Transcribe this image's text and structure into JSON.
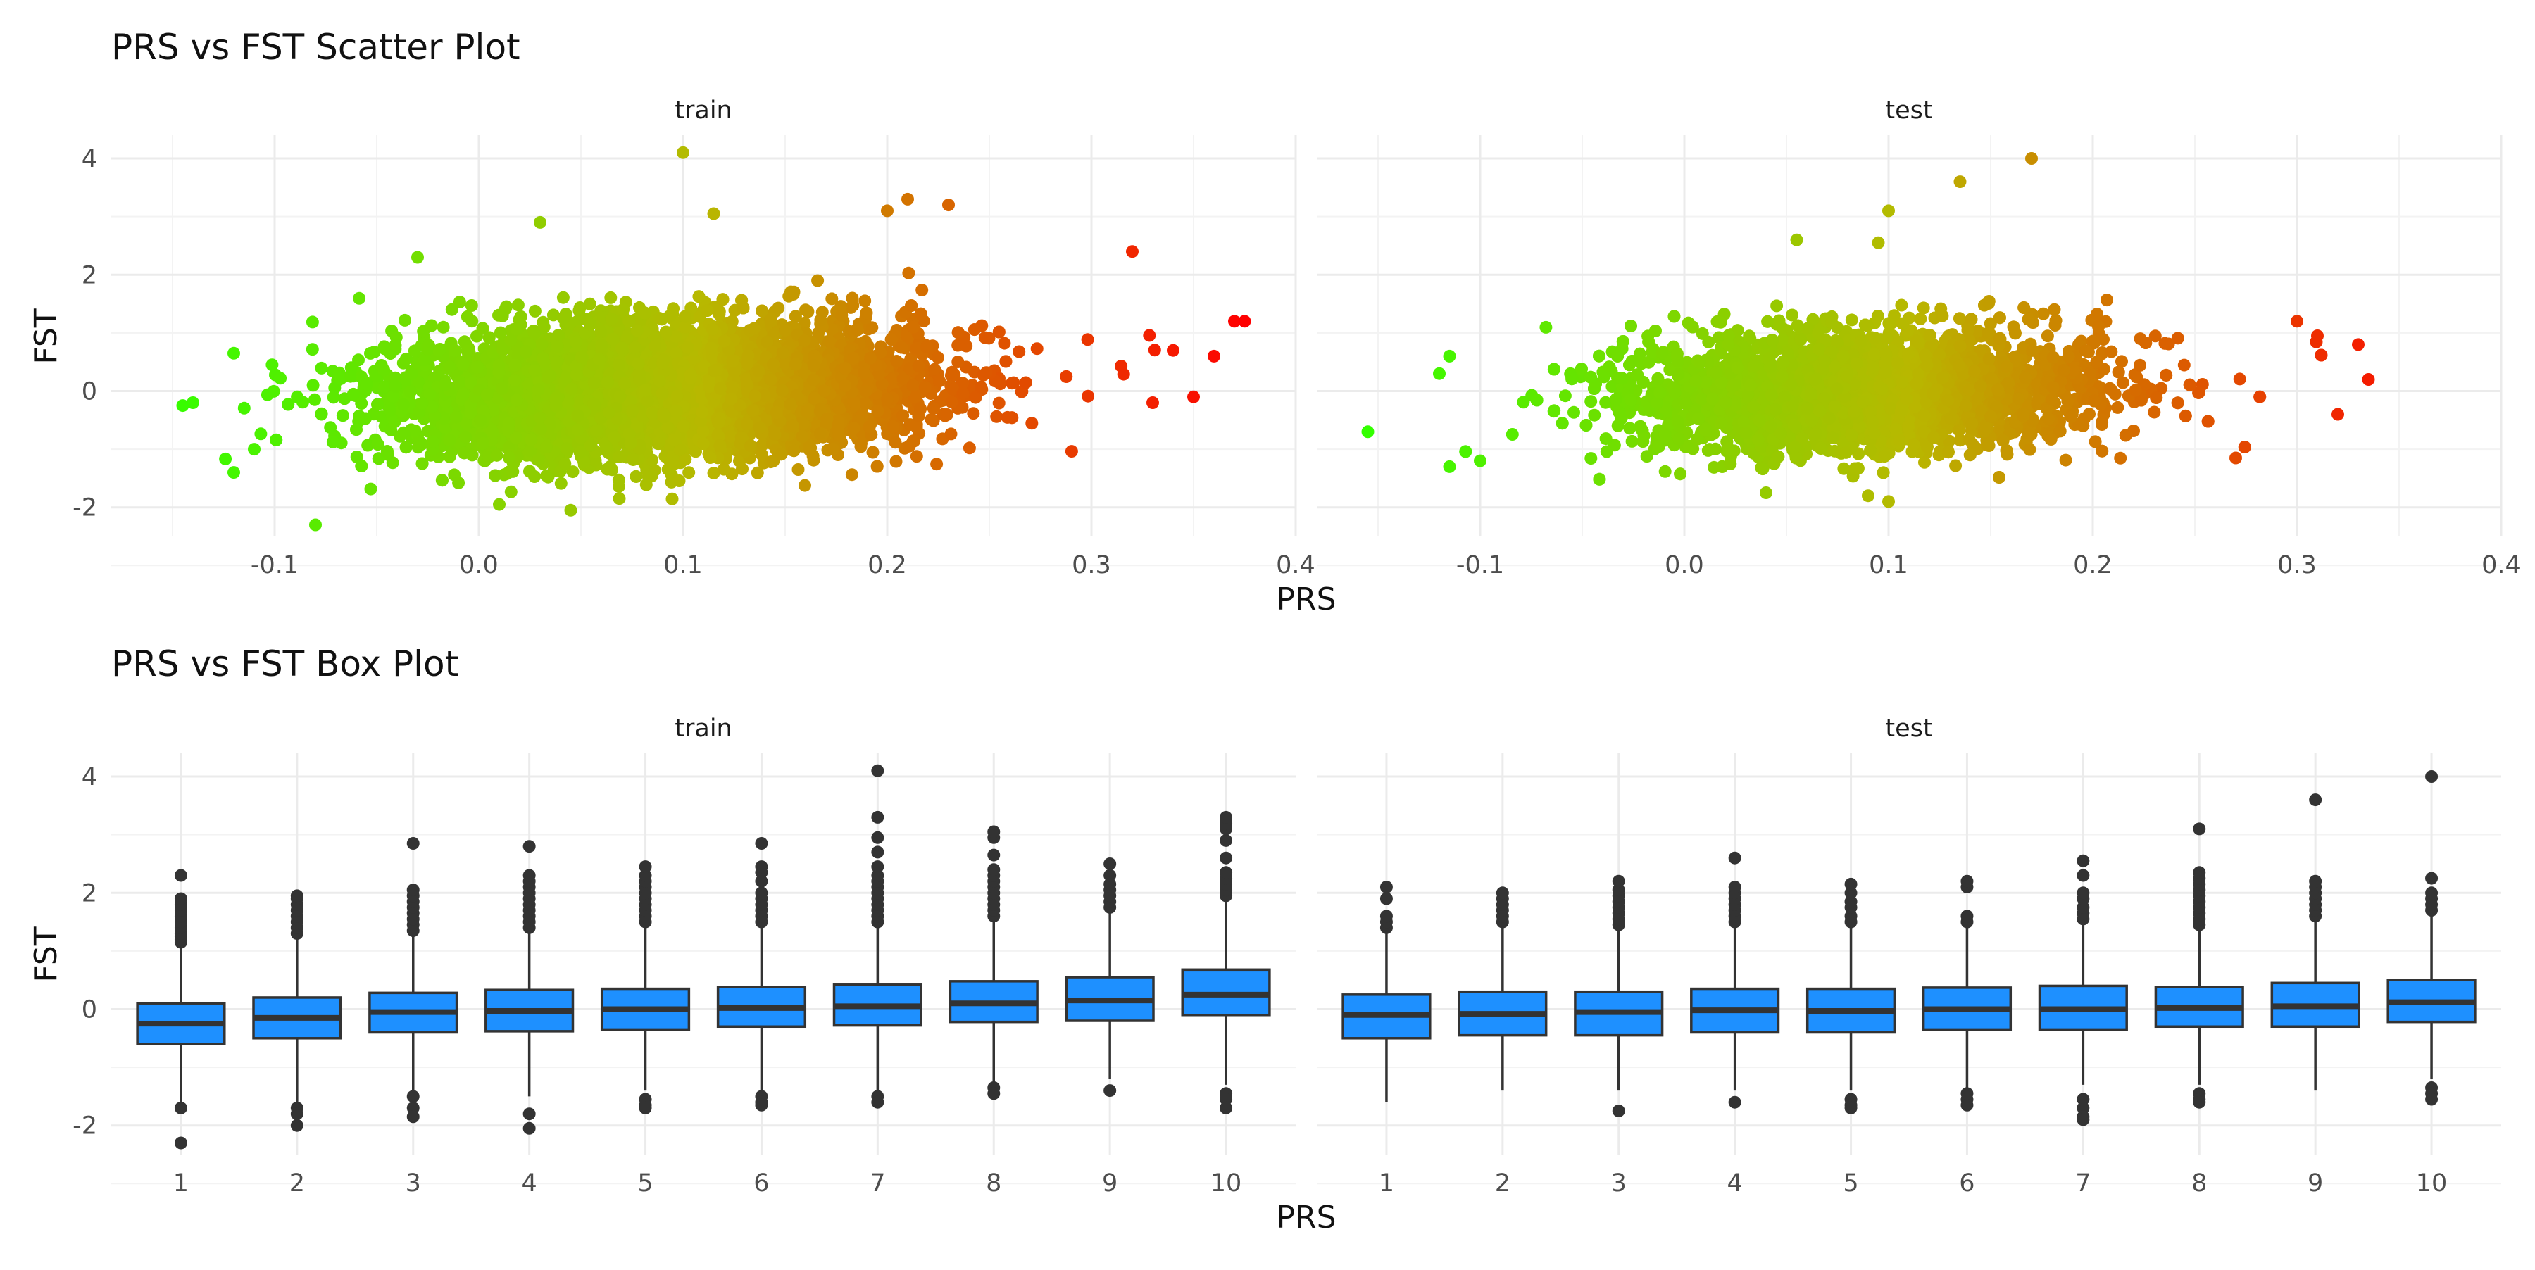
{
  "chart_data": [
    {
      "type": "scatter",
      "title": "PRS vs FST Scatter Plot",
      "xlabel": "PRS",
      "ylabel": "FST",
      "xlim": [
        -0.18,
        0.4
      ],
      "ylim": [
        -2.5,
        4.4
      ],
      "x_ticks": [
        "-0.1",
        "0.0",
        "0.1",
        "0.2",
        "0.3",
        "0.4"
      ],
      "y_ticks": [
        "-2",
        "0",
        "2",
        "4"
      ],
      "grid": true,
      "legend": "none",
      "color_scale": {
        "low": "#33ff00",
        "mid": "#b8b800",
        "high": "#ff0000",
        "by": "PRS"
      },
      "panels": [
        {
          "name": "train",
          "cloud": {
            "x_mean": 0.09,
            "x_sd": 0.063,
            "x_min": -0.15,
            "x_max": 0.375,
            "y_sd": 0.55,
            "slope": 3.6,
            "count": 6000
          },
          "points": [
            {
              "x": 0.1,
              "y": 4.1
            },
            {
              "x": 0.21,
              "y": 3.3
            },
            {
              "x": 0.23,
              "y": 3.2
            },
            {
              "x": 0.2,
              "y": 3.1
            },
            {
              "x": 0.115,
              "y": 3.05
            },
            {
              "x": 0.03,
              "y": 2.9
            },
            {
              "x": -0.03,
              "y": 2.3
            },
            {
              "x": 0.32,
              "y": 2.4
            },
            {
              "x": 0.37,
              "y": 1.2
            },
            {
              "x": 0.375,
              "y": 1.2
            },
            {
              "x": 0.36,
              "y": 0.6
            },
            {
              "x": 0.34,
              "y": 0.7
            },
            {
              "x": 0.35,
              "y": -0.1
            },
            {
              "x": 0.33,
              "y": -0.2
            },
            {
              "x": -0.14,
              "y": -0.2
            },
            {
              "x": -0.145,
              "y": -0.25
            },
            {
              "x": -0.12,
              "y": 0.65
            },
            {
              "x": -0.08,
              "y": -2.3
            },
            {
              "x": 0.045,
              "y": -2.05
            },
            {
              "x": 0.01,
              "y": -1.95
            },
            {
              "x": -0.12,
              "y": -1.4
            },
            {
              "x": -0.11,
              "y": -1.0
            }
          ]
        },
        {
          "name": "test",
          "cloud": {
            "x_mean": 0.09,
            "x_sd": 0.058,
            "x_min": -0.12,
            "x_max": 0.335,
            "y_sd": 0.5,
            "slope": 3.2,
            "count": 4000
          },
          "points": [
            {
              "x": 0.17,
              "y": 4.0
            },
            {
              "x": 0.135,
              "y": 3.6
            },
            {
              "x": 0.1,
              "y": 3.1
            },
            {
              "x": 0.095,
              "y": 2.55
            },
            {
              "x": 0.055,
              "y": 2.6
            },
            {
              "x": -0.155,
              "y": -0.7
            },
            {
              "x": -0.115,
              "y": 0.6
            },
            {
              "x": -0.12,
              "y": 0.3
            },
            {
              "x": -0.115,
              "y": -1.3
            },
            {
              "x": -0.1,
              "y": -1.2
            },
            {
              "x": 0.335,
              "y": 0.2
            },
            {
              "x": 0.33,
              "y": 0.8
            },
            {
              "x": 0.31,
              "y": 0.95
            },
            {
              "x": 0.3,
              "y": 1.2
            },
            {
              "x": 0.32,
              "y": -0.4
            },
            {
              "x": 0.27,
              "y": -1.15
            },
            {
              "x": 0.04,
              "y": -1.75
            },
            {
              "x": 0.1,
              "y": -1.9
            },
            {
              "x": 0.09,
              "y": -1.8
            }
          ]
        }
      ]
    },
    {
      "type": "box",
      "title": "PRS vs FST Box Plot",
      "xlabel": "PRS",
      "ylabel": "FST",
      "ylim": [
        -2.5,
        4.4
      ],
      "categories": [
        "1",
        "2",
        "3",
        "4",
        "5",
        "6",
        "7",
        "8",
        "9",
        "10"
      ],
      "y_ticks": [
        "-2",
        "0",
        "2",
        "4"
      ],
      "grid": true,
      "legend": "none",
      "box_color": "#1e90ff",
      "outline_color": "#333333",
      "panels": [
        {
          "name": "train",
          "boxes": [
            {
              "category": "1",
              "whisker_low": -1.6,
              "q1": -0.6,
              "median": -0.25,
              "q3": 0.1,
              "whisker_high": 1.1,
              "outliers_high": [
                1.15,
                1.2,
                1.25,
                1.3,
                1.4,
                1.5,
                1.6,
                1.7,
                1.8,
                1.9,
                2.3
              ],
              "outliers_low": [
                -1.7,
                -2.3
              ]
            },
            {
              "category": "2",
              "whisker_low": -1.6,
              "q1": -0.5,
              "median": -0.15,
              "q3": 0.2,
              "whisker_high": 1.25,
              "outliers_high": [
                1.3,
                1.4,
                1.5,
                1.6,
                1.7,
                1.8,
                1.9,
                1.95
              ],
              "outliers_low": [
                -1.7,
                -1.8,
                -2.0
              ]
            },
            {
              "category": "3",
              "whisker_low": -1.45,
              "q1": -0.4,
              "median": -0.05,
              "q3": 0.28,
              "whisker_high": 1.3,
              "outliers_high": [
                1.35,
                1.45,
                1.55,
                1.65,
                1.75,
                1.85,
                1.95,
                2.05,
                2.85
              ],
              "outliers_low": [
                -1.5,
                -1.7,
                -1.85
              ]
            },
            {
              "category": "4",
              "whisker_low": -1.5,
              "q1": -0.38,
              "median": -0.03,
              "q3": 0.33,
              "whisker_high": 1.35,
              "outliers_high": [
                1.4,
                1.5,
                1.6,
                1.7,
                1.8,
                1.9,
                2.0,
                2.1,
                2.2,
                2.3,
                2.8
              ],
              "outliers_low": [
                -1.8,
                -2.05
              ]
            },
            {
              "category": "5",
              "whisker_low": -1.4,
              "q1": -0.35,
              "median": 0.0,
              "q3": 0.35,
              "whisker_high": 1.4,
              "outliers_high": [
                1.5,
                1.6,
                1.7,
                1.8,
                1.9,
                2.0,
                2.1,
                2.2,
                2.3,
                2.45
              ],
              "outliers_low": [
                -1.55,
                -1.65,
                -1.7
              ]
            },
            {
              "category": "6",
              "whisker_low": -1.4,
              "q1": -0.3,
              "median": 0.02,
              "q3": 0.38,
              "whisker_high": 1.45,
              "outliers_high": [
                1.5,
                1.6,
                1.7,
                1.8,
                1.9,
                2.0,
                2.2,
                2.35,
                2.45,
                2.85
              ],
              "outliers_low": [
                -1.5,
                -1.6,
                -1.65
              ]
            },
            {
              "category": "7",
              "whisker_low": -1.4,
              "q1": -0.28,
              "median": 0.05,
              "q3": 0.42,
              "whisker_high": 1.45,
              "outliers_high": [
                1.5,
                1.6,
                1.7,
                1.8,
                1.9,
                2.0,
                2.1,
                2.2,
                2.3,
                2.45,
                2.7,
                2.95,
                3.3,
                4.1
              ],
              "outliers_low": [
                -1.5,
                -1.6
              ]
            },
            {
              "category": "8",
              "whisker_low": -1.3,
              "q1": -0.22,
              "median": 0.1,
              "q3": 0.48,
              "whisker_high": 1.55,
              "outliers_high": [
                1.6,
                1.7,
                1.8,
                1.9,
                2.0,
                2.1,
                2.2,
                2.3,
                2.4,
                2.65,
                2.95,
                3.05
              ],
              "outliers_low": [
                -1.35,
                -1.45
              ]
            },
            {
              "category": "9",
              "whisker_low": -1.2,
              "q1": -0.2,
              "median": 0.15,
              "q3": 0.55,
              "whisker_high": 1.7,
              "outliers_high": [
                1.75,
                1.85,
                1.95,
                2.05,
                2.15,
                2.3,
                2.5
              ],
              "outliers_low": [
                -1.4
              ]
            },
            {
              "category": "10",
              "whisker_low": -1.3,
              "q1": -0.1,
              "median": 0.25,
              "q3": 0.68,
              "whisker_high": 1.9,
              "outliers_high": [
                1.95,
                2.05,
                2.15,
                2.25,
                2.35,
                2.6,
                2.9,
                3.1,
                3.2,
                3.3
              ],
              "outliers_low": [
                -1.45,
                -1.55,
                -1.7
              ]
            }
          ]
        },
        {
          "name": "test",
          "boxes": [
            {
              "category": "1",
              "whisker_low": -1.6,
              "q1": -0.5,
              "median": -0.1,
              "q3": 0.25,
              "whisker_high": 1.3,
              "outliers_high": [
                1.4,
                1.5,
                1.6,
                1.9,
                2.1
              ],
              "outliers_low": []
            },
            {
              "category": "2",
              "whisker_low": -1.4,
              "q1": -0.45,
              "median": -0.08,
              "q3": 0.3,
              "whisker_high": 1.4,
              "outliers_high": [
                1.5,
                1.6,
                1.7,
                1.8,
                1.9,
                2.0
              ],
              "outliers_low": []
            },
            {
              "category": "3",
              "whisker_low": -1.4,
              "q1": -0.45,
              "median": -0.05,
              "q3": 0.3,
              "whisker_high": 1.4,
              "outliers_high": [
                1.45,
                1.55,
                1.65,
                1.75,
                1.85,
                1.95,
                2.05,
                2.2
              ],
              "outliers_low": [
                -1.75
              ]
            },
            {
              "category": "4",
              "whisker_low": -1.4,
              "q1": -0.4,
              "median": -0.02,
              "q3": 0.35,
              "whisker_high": 1.45,
              "outliers_high": [
                1.5,
                1.6,
                1.7,
                1.8,
                1.9,
                2.0,
                2.1,
                2.6
              ],
              "outliers_low": [
                -1.6
              ]
            },
            {
              "category": "5",
              "whisker_low": -1.4,
              "q1": -0.4,
              "median": -0.03,
              "q3": 0.35,
              "whisker_high": 1.45,
              "outliers_high": [
                1.5,
                1.6,
                1.75,
                1.85,
                2.0,
                2.15
              ],
              "outliers_low": [
                -1.55,
                -1.65,
                -1.7
              ]
            },
            {
              "category": "6",
              "whisker_low": -1.4,
              "q1": -0.35,
              "median": 0.0,
              "q3": 0.37,
              "whisker_high": 1.45,
              "outliers_high": [
                1.5,
                1.6,
                2.1,
                2.2
              ],
              "outliers_low": [
                -1.45,
                -1.55,
                -1.65
              ]
            },
            {
              "category": "7",
              "whisker_low": -1.3,
              "q1": -0.35,
              "median": 0.0,
              "q3": 0.4,
              "whisker_high": 1.5,
              "outliers_high": [
                1.55,
                1.65,
                1.75,
                1.9,
                2.0,
                2.3,
                2.55
              ],
              "outliers_low": [
                -1.55,
                -1.7,
                -1.85,
                -1.9
              ]
            },
            {
              "category": "8",
              "whisker_low": -1.3,
              "q1": -0.3,
              "median": 0.02,
              "q3": 0.38,
              "whisker_high": 1.4,
              "outliers_high": [
                1.45,
                1.55,
                1.65,
                1.75,
                1.85,
                1.95,
                2.05,
                2.15,
                2.25,
                2.35,
                3.1
              ],
              "outliers_low": [
                -1.45,
                -1.55,
                -1.6
              ]
            },
            {
              "category": "9",
              "whisker_low": -1.4,
              "q1": -0.3,
              "median": 0.05,
              "q3": 0.45,
              "whisker_high": 1.55,
              "outliers_high": [
                1.6,
                1.7,
                1.8,
                1.9,
                2.0,
                2.1,
                2.2,
                3.6
              ],
              "outliers_low": []
            },
            {
              "category": "10",
              "whisker_low": -1.2,
              "q1": -0.22,
              "median": 0.12,
              "q3": 0.5,
              "whisker_high": 1.65,
              "outliers_high": [
                1.7,
                1.8,
                1.9,
                2.0,
                2.25,
                4.0
              ],
              "outliers_low": [
                -1.35,
                -1.45,
                -1.55
              ]
            }
          ]
        }
      ]
    }
  ]
}
